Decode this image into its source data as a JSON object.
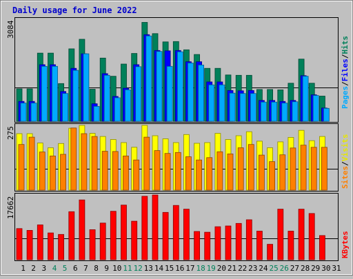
{
  "chart_data": [
    {
      "type": "bar",
      "title": "Daily usage for June 2022",
      "categories": [
        "1",
        "2",
        "3",
        "4",
        "5",
        "6",
        "7",
        "8",
        "9",
        "10",
        "11",
        "12",
        "13",
        "14",
        "15",
        "16",
        "17",
        "18",
        "19",
        "20",
        "21",
        "22",
        "23",
        "24",
        "25",
        "26",
        "27",
        "28",
        "29",
        "30",
        "31"
      ],
      "weekend_days": [
        "4",
        "5",
        "11",
        "12",
        "18",
        "19",
        "25",
        "26"
      ],
      "ymax_label": "3084",
      "ylim": [
        0,
        3084
      ],
      "side_labels": [
        {
          "text": "Pages",
          "color": "#00aaff"
        },
        {
          "text": "Files",
          "color": "#0000ff"
        },
        {
          "text": "Hits",
          "color": "#00805a"
        }
      ],
      "series": [
        {
          "name": "Hits",
          "color": "#00805a",
          "values": [
            980,
            980,
            2060,
            2060,
            1140,
            2190,
            2480,
            970,
            1910,
            1360,
            1730,
            2050,
            2990,
            2650,
            2400,
            2410,
            2160,
            2020,
            1600,
            1600,
            1400,
            1390,
            1390,
            960,
            960,
            950,
            1150,
            1880,
            1150,
            760,
            0
          ]
        },
        {
          "name": "Files",
          "color": "#0000ff",
          "values": [
            600,
            600,
            1710,
            1710,
            900,
            1600,
            2040,
            530,
            1440,
            750,
            1000,
            1710,
            2620,
            2140,
            2130,
            2140,
            1800,
            1800,
            1190,
            1190,
            930,
            920,
            930,
            630,
            630,
            600,
            630,
            1380,
            800,
            400,
            0
          ]
        },
        {
          "name": "Pages",
          "color": "#00aaff",
          "values": [
            550,
            550,
            1660,
            1660,
            840,
            1540,
            2040,
            450,
            1390,
            710,
            950,
            1650,
            2580,
            2110,
            1660,
            2100,
            1760,
            1700,
            1100,
            1100,
            850,
            840,
            840,
            580,
            580,
            550,
            590,
            1360,
            780,
            390,
            0
          ]
        }
      ]
    },
    {
      "type": "bar",
      "categories": [
        "1",
        "2",
        "3",
        "4",
        "5",
        "6",
        "7",
        "8",
        "9",
        "10",
        "11",
        "12",
        "13",
        "14",
        "15",
        "16",
        "17",
        "18",
        "19",
        "20",
        "21",
        "22",
        "23",
        "24",
        "25",
        "26",
        "27",
        "28",
        "29",
        "30",
        "31"
      ],
      "ymax_label": "275",
      "ylim": [
        0,
        275
      ],
      "side_labels": [
        {
          "text": "Sites",
          "color": "#ff8000"
        },
        {
          "text": "Visits",
          "color": "#e6e600"
        }
      ],
      "series": [
        {
          "name": "Visits",
          "color": "#ffff00",
          "values": [
            240,
            240,
            200,
            180,
            198,
            263,
            275,
            241,
            228,
            215,
            202,
            182,
            275,
            231,
            218,
            202,
            236,
            199,
            202,
            241,
            215,
            231,
            248,
            208,
            180,
            205,
            224,
            254,
            210,
            228,
            0
          ]
        },
        {
          "name": "Sites",
          "color": "#ff8000",
          "values": [
            194,
            225,
            162,
            145,
            152,
            264,
            240,
            228,
            165,
            164,
            145,
            128,
            225,
            168,
            156,
            160,
            142,
            128,
            138,
            163,
            154,
            180,
            194,
            149,
            121,
            150,
            179,
            191,
            182,
            182,
            0
          ]
        }
      ]
    },
    {
      "type": "bar",
      "categories": [
        "1",
        "2",
        "3",
        "4",
        "5",
        "6",
        "7",
        "8",
        "9",
        "10",
        "11",
        "12",
        "13",
        "14",
        "15",
        "16",
        "17",
        "18",
        "19",
        "20",
        "21",
        "22",
        "23",
        "24",
        "25",
        "26",
        "27",
        "28",
        "29",
        "30",
        "31"
      ],
      "ymax_label": "17662",
      "ylim": [
        0,
        17662
      ],
      "side_labels": [
        {
          "text": "KBytes",
          "color": "#ff0000"
        }
      ],
      "series": [
        {
          "name": "KBytes",
          "color": "#ff0000",
          "values": [
            8500,
            8000,
            9500,
            7300,
            6900,
            13100,
            16300,
            8200,
            10000,
            13200,
            14900,
            10500,
            17300,
            17662,
            12900,
            14800,
            13800,
            7700,
            7500,
            9000,
            9200,
            9900,
            10900,
            7800,
            4200,
            13800,
            7800,
            13800,
            12600,
            6600,
            0
          ]
        }
      ]
    }
  ]
}
